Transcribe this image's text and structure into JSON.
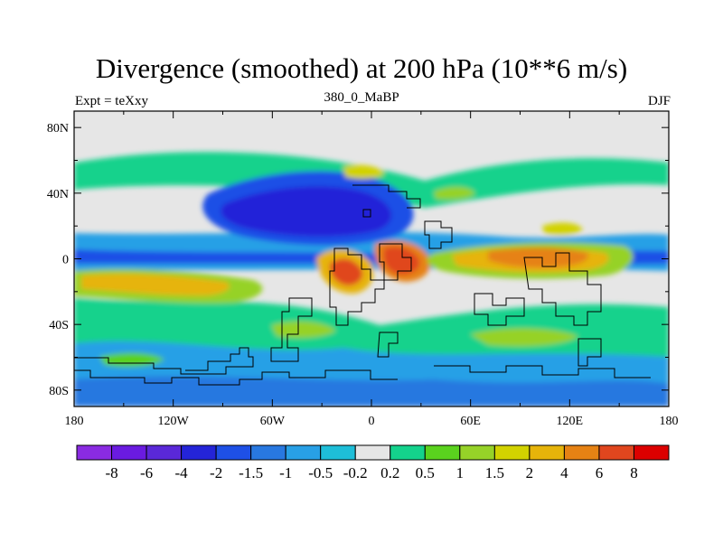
{
  "title": "Divergence (smoothed) at 200 hPa (10**6 m/s)",
  "left_label": "Expt = teXxy",
  "center_label": "380_0_MaBP",
  "right_label": "DJF",
  "chart_data": {
    "type": "filled-contour-map",
    "variable": "Divergence (smoothed) at 200 hPa",
    "units": "10**6 m/s",
    "lon_range": [
      -180,
      180
    ],
    "lat_range": [
      -90,
      90
    ],
    "x_ticks": [
      {
        "value": -180,
        "label": "180"
      },
      {
        "value": -120,
        "label": "120W"
      },
      {
        "value": -60,
        "label": "60W"
      },
      {
        "value": 0,
        "label": "0"
      },
      {
        "value": 60,
        "label": "60E"
      },
      {
        "value": 120,
        "label": "120E"
      },
      {
        "value": 180,
        "label": "180"
      }
    ],
    "y_ticks": [
      {
        "value": 80,
        "label": "80N"
      },
      {
        "value": 40,
        "label": "40N"
      },
      {
        "value": 0,
        "label": "0"
      },
      {
        "value": -40,
        "label": "40S"
      },
      {
        "value": -80,
        "label": "80S"
      }
    ],
    "contour_levels": [
      "-8",
      "-6",
      "-4",
      "-2",
      "-1.5",
      "-1",
      "-0.5",
      "-0.2",
      "0.2",
      "0.5",
      "1",
      "1.5",
      "2",
      "4",
      "6",
      "8"
    ],
    "colorbar_colors": [
      "#8a2be2",
      "#6a1be0",
      "#5a28d8",
      "#2424d8",
      "#1e50e6",
      "#2878e0",
      "#28a0e6",
      "#1ebed8",
      "#e6e6e6",
      "#14d28c",
      "#5ad21e",
      "#96d228",
      "#d2d200",
      "#e6b40a",
      "#e68214",
      "#e0461e",
      "#dc0000"
    ],
    "features": [
      {
        "label": "strong convergence band",
        "lon": [
          -100,
          20
        ],
        "lat": [
          10,
          40
        ],
        "value_range": "-4 to -2"
      },
      {
        "label": "equatorial convergence band",
        "lon": [
          -180,
          180
        ],
        "lat": [
          -4,
          4
        ],
        "value_range": "-2 to -1"
      },
      {
        "label": "divergence maximum near 0-20E",
        "lon": [
          0,
          30
        ],
        "lat": [
          -10,
          10
        ],
        "value_range": "4 to 6"
      },
      {
        "label": "divergence maximum near 80-120E",
        "lon": [
          60,
          130
        ],
        "lat": [
          -10,
          0
        ],
        "value_range": "2 to 6"
      },
      {
        "label": "southern subtropical divergence band",
        "lon": [
          -180,
          -60
        ],
        "lat": [
          -20,
          -6
        ],
        "value_range": "1.5 to 4"
      }
    ]
  }
}
